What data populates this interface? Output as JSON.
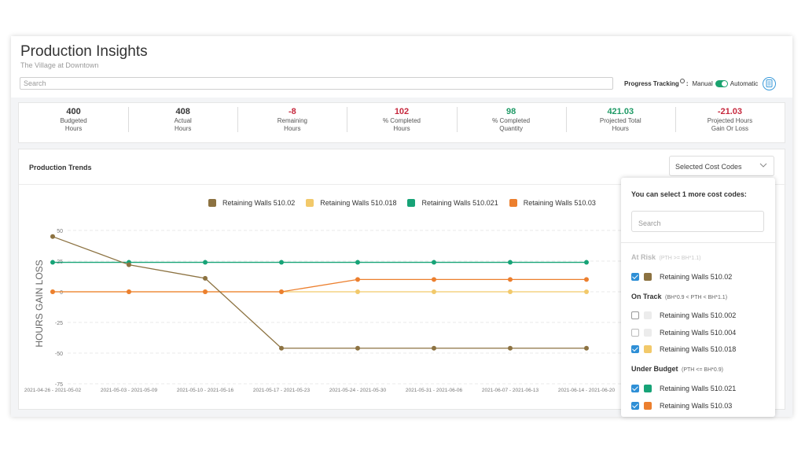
{
  "header": {
    "title": "Production Insights",
    "subtitle": "The Village at Downtown",
    "search_placeholder": "Search",
    "progress_tracking_label": "Progress Tracking",
    "progress_tracking_colon": ":",
    "manual_label": "Manual",
    "automatic_label": "Automatic",
    "toggle_state": "automatic"
  },
  "stats": [
    {
      "value": "400",
      "label_line1": "Budgeted",
      "label_line2": "Hours",
      "color": "#333333"
    },
    {
      "value": "408",
      "label_line1": "Actual",
      "label_line2": "Hours",
      "color": "#333333"
    },
    {
      "value": "-8",
      "label_line1": "Remaining",
      "label_line2": "Hours",
      "color": "#c6283d"
    },
    {
      "value": "102",
      "label_line1": "% Completed",
      "label_line2": "Hours",
      "color": "#c6283d"
    },
    {
      "value": "98",
      "label_line1": "% Completed",
      "label_line2": "Quantity",
      "color": "#1f9a66"
    },
    {
      "value": "421.03",
      "label_line1": "Projected Total",
      "label_line2": "Hours",
      "color": "#1f9a66"
    },
    {
      "value": "-21.03",
      "label_line1": "Projected Hours",
      "label_line2": "Gain Or Loss",
      "color": "#c6283d"
    }
  ],
  "trends": {
    "title": "Production Trends",
    "select_label": "Selected Cost Codes"
  },
  "chart_data": {
    "type": "line",
    "ylabel": "HOURS GAIN LOSS",
    "xlabel": "",
    "ylim": [
      -75,
      50
    ],
    "yticks": [
      50,
      25,
      0,
      -25,
      -50,
      -75
    ],
    "grid": true,
    "legend_position": "top-center",
    "categories": [
      "2021-04-26 - 2021-05-02",
      "2021-05-03 - 2021-05-09",
      "2021-05-10 - 2021-05-16",
      "2021-05-17 - 2021-05-23",
      "2021-05-24 - 2021-05-30",
      "2021-05-31 - 2021-06-06",
      "2021-06-07 - 2021-06-13",
      "2021-06-14 - 2021-06-20"
    ],
    "series": [
      {
        "name": "Retaining Walls 510.02",
        "color": "#8c7241",
        "values": [
          45,
          22,
          11,
          -46,
          -46,
          -46,
          -46,
          -46
        ]
      },
      {
        "name": "Retaining Walls 510.018",
        "color": "#f2c96a",
        "values": [
          0,
          0,
          0,
          0,
          0,
          0,
          0,
          0
        ]
      },
      {
        "name": "Retaining Walls 510.021",
        "color": "#17a377",
        "values": [
          24,
          24,
          24,
          24,
          24,
          24,
          24,
          24
        ]
      },
      {
        "name": "Retaining Walls 510.03",
        "color": "#ec7f2e",
        "values": [
          0,
          0,
          0,
          0,
          10,
          10,
          10,
          10
        ]
      }
    ]
  },
  "dropdown": {
    "header": "You can select 1 more cost codes:",
    "search_placeholder": "Search",
    "groups": [
      {
        "name": "At Risk",
        "criteria": "(PTH >= BH*1.1)",
        "faded": true,
        "options": [
          {
            "label": "Retaining Walls 510.02",
            "checked": true,
            "color": "#8c7241"
          }
        ]
      },
      {
        "name": "On Track",
        "criteria": "(BH*0.9 < PTH < BH*1.1)",
        "faded": false,
        "options": [
          {
            "label": "Retaining Walls 510.002",
            "checked": false,
            "color": "#ececec"
          },
          {
            "label": "Retaining Walls 510.004",
            "checked": false,
            "color": "#ececec"
          },
          {
            "label": "Retaining Walls 510.018",
            "checked": true,
            "color": "#f2c96a"
          }
        ]
      },
      {
        "name": "Under Budget",
        "criteria": "(PTH <= BH*0.9)",
        "faded": false,
        "options": [
          {
            "label": "Retaining Walls 510.021",
            "checked": true,
            "color": "#17a377"
          },
          {
            "label": "Retaining Walls 510.03",
            "checked": true,
            "color": "#ec7f2e"
          }
        ]
      }
    ]
  }
}
